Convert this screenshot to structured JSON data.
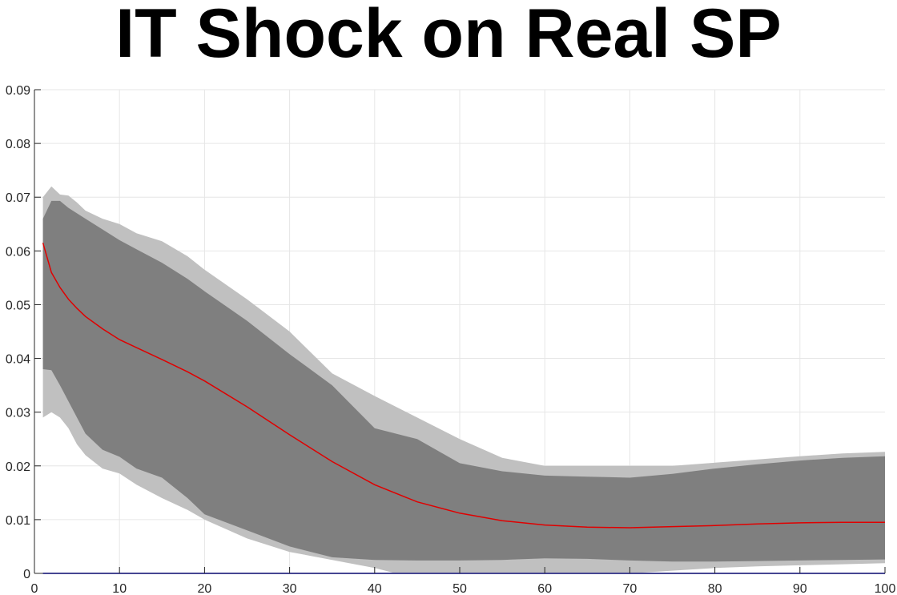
{
  "chart_data": {
    "type": "area",
    "title": "IT Shock on Real SP",
    "xlabel": "",
    "ylabel": "",
    "xlim": [
      0,
      100
    ],
    "ylim": [
      0,
      0.09
    ],
    "grid": true,
    "xticks": [
      "0",
      "10",
      "20",
      "30",
      "40",
      "50",
      "60",
      "70",
      "80",
      "90",
      "100"
    ],
    "yticks": [
      "0",
      "0.01",
      "0.02",
      "0.03",
      "0.04",
      "0.05",
      "0.06",
      "0.07",
      "0.08",
      "0.09"
    ],
    "x": [
      1,
      2,
      3,
      4,
      5,
      6,
      8,
      10,
      12,
      15,
      18,
      20,
      25,
      30,
      35,
      40,
      45,
      50,
      55,
      60,
      65,
      70,
      75,
      80,
      85,
      90,
      95,
      100
    ],
    "series": [
      {
        "role": "outer-upper",
        "color": "#c0c0c0",
        "values": [
          0.07,
          0.072,
          0.0705,
          0.0703,
          0.069,
          0.0675,
          0.066,
          0.065,
          0.0633,
          0.0618,
          0.059,
          0.0565,
          0.051,
          0.045,
          0.0372,
          0.033,
          0.029,
          0.025,
          0.0215,
          0.02,
          0.02,
          0.02,
          0.02,
          0.0206,
          0.0212,
          0.0218,
          0.0223,
          0.0226
        ]
      },
      {
        "role": "outer-lower",
        "color": "#c0c0c0",
        "values": [
          0.029,
          0.03,
          0.029,
          0.027,
          0.024,
          0.022,
          0.0195,
          0.0186,
          0.0165,
          0.014,
          0.0118,
          0.01,
          0.0065,
          0.004,
          0.0025,
          0.001,
          -0.001,
          -0.0015,
          -0.0015,
          -0.001,
          -0.0005,
          0.0,
          0.0005,
          0.001,
          0.0013,
          0.0015,
          0.0017,
          0.0019
        ]
      },
      {
        "role": "inner-upper",
        "color": "#7f7f7f",
        "values": [
          0.066,
          0.0693,
          0.0693,
          0.068,
          0.067,
          0.066,
          0.064,
          0.062,
          0.0603,
          0.0578,
          0.0548,
          0.0525,
          0.047,
          0.0408,
          0.035,
          0.027,
          0.025,
          0.0205,
          0.019,
          0.0182,
          0.018,
          0.0178,
          0.0185,
          0.0195,
          0.0203,
          0.021,
          0.0215,
          0.0218
        ]
      },
      {
        "role": "inner-lower",
        "color": "#7f7f7f",
        "values": [
          0.038,
          0.0378,
          0.035,
          0.032,
          0.029,
          0.026,
          0.023,
          0.0217,
          0.0195,
          0.0178,
          0.014,
          0.011,
          0.008,
          0.005,
          0.003,
          0.0025,
          0.0024,
          0.0024,
          0.0025,
          0.0028,
          0.0027,
          0.0024,
          0.0022,
          0.0022,
          0.0023,
          0.0024,
          0.0025,
          0.0026
        ]
      },
      {
        "role": "median",
        "color": "#e00000",
        "values": [
          0.0615,
          0.056,
          0.0532,
          0.051,
          0.0493,
          0.0478,
          0.0455,
          0.0435,
          0.042,
          0.0398,
          0.0375,
          0.0358,
          0.031,
          0.0258,
          0.0208,
          0.0165,
          0.0133,
          0.0112,
          0.0098,
          0.009,
          0.0086,
          0.0085,
          0.0087,
          0.0089,
          0.0092,
          0.0094,
          0.0095,
          0.0095
        ]
      },
      {
        "role": "zero-line",
        "color": "#6666ff",
        "values": [
          0,
          0,
          0,
          0,
          0,
          0,
          0,
          0,
          0,
          0,
          0,
          0,
          0,
          0,
          0,
          0,
          0,
          0,
          0,
          0,
          0,
          0,
          0,
          0,
          0,
          0,
          0,
          0
        ]
      }
    ]
  }
}
